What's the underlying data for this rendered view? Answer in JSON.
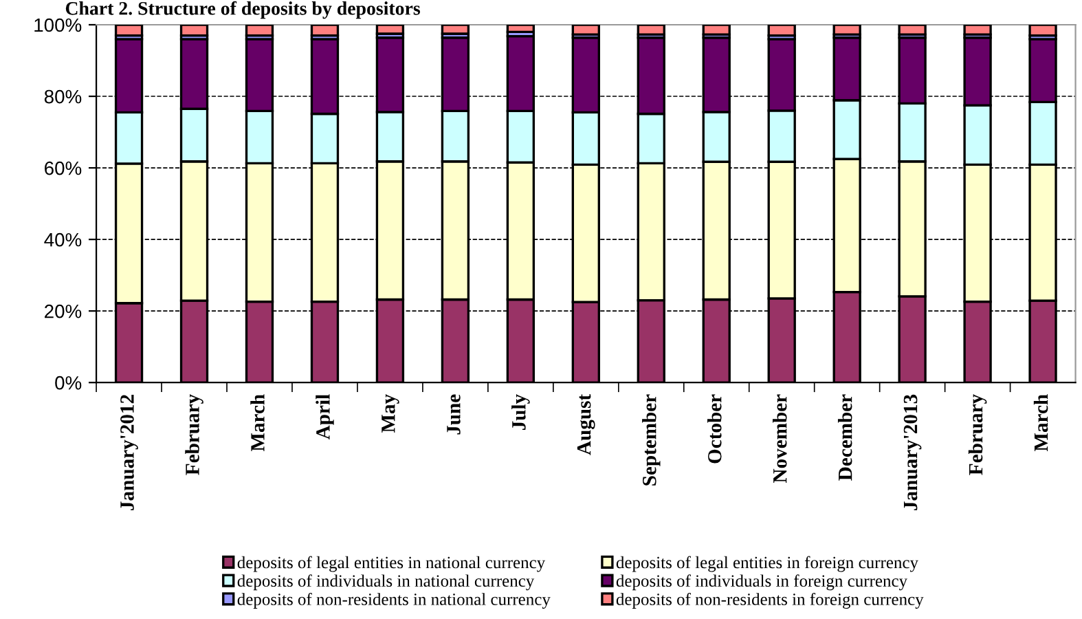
{
  "chart_data": {
    "type": "bar",
    "stacked": true,
    "title": "Chart 2. Structure of deposits by depositors",
    "categories": [
      "January'2012",
      "February",
      "March",
      "April",
      "May",
      "June",
      "July",
      "August",
      "September",
      "October",
      "November",
      "December",
      "January'2013",
      "February",
      "March"
    ],
    "series": [
      {
        "name": "deposits of legal entities in national currency",
        "color": "#993366",
        "values": [
          22.2,
          22.9,
          22.6,
          22.6,
          23.2,
          23.2,
          23.2,
          22.5,
          23.0,
          23.2,
          23.5,
          25.3,
          24.1,
          22.6,
          22.9
        ]
      },
      {
        "name": "deposits of legal entities in foreign currency",
        "color": "#ffffcc",
        "values": [
          39.0,
          38.9,
          38.7,
          38.7,
          38.6,
          38.6,
          38.3,
          38.4,
          38.3,
          38.5,
          38.2,
          37.2,
          37.7,
          38.3,
          38.0
        ]
      },
      {
        "name": "deposits of individuals in national currency",
        "color": "#ccffff",
        "values": [
          14.3,
          14.7,
          14.6,
          13.8,
          13.8,
          14.1,
          14.4,
          14.6,
          13.8,
          13.9,
          14.3,
          16.4,
          16.2,
          16.6,
          17.5
        ]
      },
      {
        "name": "deposits of individuals in foreign currency",
        "color": "#660066",
        "values": [
          20.5,
          19.5,
          20.1,
          20.9,
          20.8,
          20.5,
          20.9,
          20.9,
          21.3,
          20.8,
          20.0,
          17.5,
          18.4,
          18.9,
          17.6
        ]
      },
      {
        "name": "deposits of non-residents in national currency",
        "color": "#9999ff",
        "values": [
          1.0,
          1.0,
          1.0,
          1.0,
          1.1,
          1.1,
          1.2,
          0.9,
          0.9,
          0.9,
          1.0,
          0.9,
          0.9,
          0.9,
          1.0
        ]
      },
      {
        "name": "deposits of non-residents in foreign currency",
        "color": "#ff8080",
        "values": [
          3.0,
          3.0,
          3.0,
          3.0,
          2.5,
          2.5,
          2.0,
          2.7,
          2.7,
          2.7,
          3.0,
          2.7,
          2.7,
          2.7,
          3.0
        ]
      }
    ],
    "ylim": [
      0,
      100
    ],
    "yticks": [
      {
        "value": 0,
        "label": "0%"
      },
      {
        "value": 20,
        "label": "20%"
      },
      {
        "value": 40,
        "label": "40%"
      },
      {
        "value": 60,
        "label": "60%"
      },
      {
        "value": 80,
        "label": "80%"
      },
      {
        "value": 100,
        "label": "100%"
      }
    ],
    "grid": "y",
    "legend": "bottom"
  }
}
